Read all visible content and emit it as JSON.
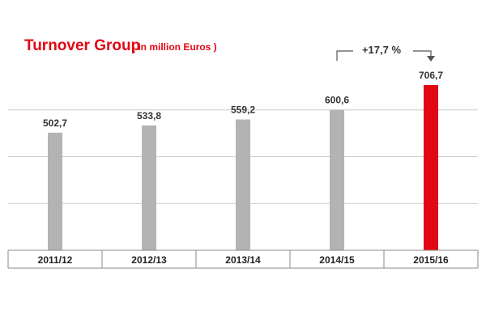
{
  "chart_data": {
    "type": "bar",
    "title": "Turnover Group",
    "subtitle": "( In million Euros )",
    "categories": [
      "2011/12",
      "2012/13",
      "2013/14",
      "2014/15",
      "2015/16"
    ],
    "values": [
      502.7,
      533.8,
      559.2,
      600.6,
      706.7
    ],
    "value_labels": [
      "502,7",
      "533,8",
      "559,2",
      "600,6",
      "706,7"
    ],
    "highlight_index": 4,
    "ylim": [
      0,
      800
    ],
    "gridlines": [
      200,
      400,
      600
    ],
    "grid": true,
    "annotation": {
      "text": "+17,7 %",
      "from_category": "2014/15",
      "to_category": "2015/16"
    },
    "colors": {
      "bar": "#b3b3b3",
      "highlight_bar": "#e30613",
      "title": "#e30613",
      "grid": "#c8c8c8",
      "axis": "#8a8a8a"
    }
  }
}
